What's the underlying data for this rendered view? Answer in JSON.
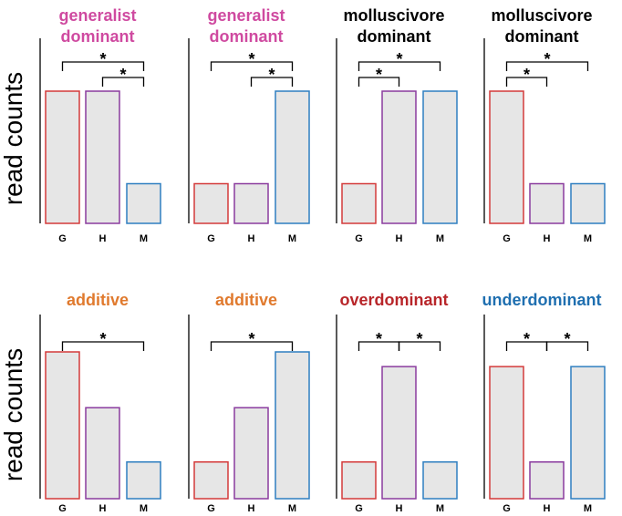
{
  "colors": {
    "G": "#d43a3a",
    "H": "#8a3b9e",
    "M": "#2f7fc0",
    "bar_fill": "#e6e6e6",
    "generalist": "#cf4aa0",
    "molluscivore": "#000000",
    "additive": "#e07a2e",
    "overdominant": "#b8262a",
    "underdominant": "#1f6fb0"
  },
  "chart_data": {
    "type": "bar",
    "categories": [
      "G",
      "H",
      "M"
    ],
    "ylabel": "read counts",
    "ylim": [
      0,
      10
    ],
    "rows": [
      {
        "ylabel": "read counts",
        "panels": [
          {
            "title": [
              "generalist",
              "dominant"
            ],
            "title_color": "#cf4aa0",
            "values": [
              10,
              10,
              3
            ],
            "comparisons": [
              {
                "from": "G",
                "to": "M",
                "label": "*"
              },
              {
                "from": "H",
                "to": "M",
                "label": "*"
              }
            ]
          },
          {
            "title": [
              "generalist",
              "dominant"
            ],
            "title_color": "#cf4aa0",
            "values": [
              3,
              3,
              10
            ],
            "comparisons": [
              {
                "from": "G",
                "to": "M",
                "label": "*"
              },
              {
                "from": "H",
                "to": "M",
                "label": "*"
              }
            ]
          },
          {
            "title": [
              "molluscivore",
              "dominant"
            ],
            "title_color": "#000000",
            "values": [
              3,
              10,
              10
            ],
            "comparisons": [
              {
                "from": "G",
                "to": "M",
                "label": "*"
              },
              {
                "from": "G",
                "to": "H",
                "label": "*"
              }
            ]
          },
          {
            "title": [
              "molluscivore",
              "dominant"
            ],
            "title_color": "#000000",
            "values": [
              10,
              3,
              3
            ],
            "comparisons": [
              {
                "from": "G",
                "to": "M",
                "label": "*"
              },
              {
                "from": "G",
                "to": "H",
                "label": "*"
              }
            ]
          }
        ]
      },
      {
        "ylabel": "read counts",
        "panels": [
          {
            "title": [
              "additive"
            ],
            "title_color": "#e07a2e",
            "values": [
              10,
              6.2,
              2.5
            ],
            "comparisons": [
              {
                "from": "G",
                "to": "M",
                "label": "*"
              }
            ]
          },
          {
            "title": [
              "additive"
            ],
            "title_color": "#e07a2e",
            "values": [
              2.5,
              6.2,
              10
            ],
            "comparisons": [
              {
                "from": "G",
                "to": "M",
                "label": "*"
              }
            ]
          },
          {
            "title": [
              "overdominant"
            ],
            "title_color": "#b8262a",
            "values": [
              2.5,
              9,
              2.5
            ],
            "comparisons": [
              {
                "from": "G",
                "to": "H",
                "label": "*"
              },
              {
                "from": "H",
                "to": "M",
                "label": "*"
              }
            ]
          },
          {
            "title": [
              "underdominant"
            ],
            "title_color": "#1f6fb0",
            "values": [
              9,
              2.5,
              9
            ],
            "comparisons": [
              {
                "from": "G",
                "to": "H",
                "label": "*"
              },
              {
                "from": "H",
                "to": "M",
                "label": "*"
              }
            ]
          }
        ]
      }
    ]
  }
}
